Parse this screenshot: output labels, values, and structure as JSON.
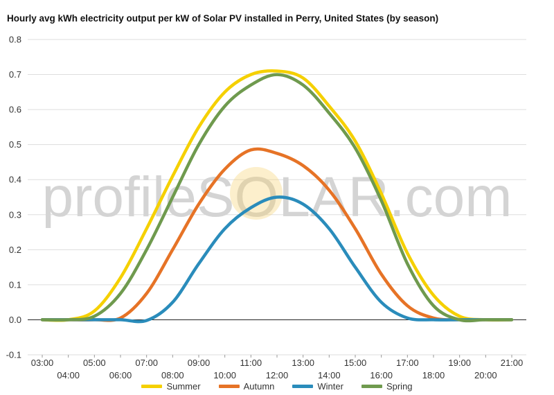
{
  "chart_data": {
    "type": "line",
    "title": "Hourly avg kWh electricity output per kW of Solar PV installed in Perry, United States (by season)",
    "xlabel": "",
    "ylabel": "",
    "ylim": [
      -0.1,
      0.8
    ],
    "yticks": [
      "0.8",
      "0.7",
      "0.6",
      "0.5",
      "0.4",
      "0.3",
      "0.2",
      "0.1",
      "0.0",
      "-0.1"
    ],
    "x": [
      3,
      4,
      5,
      6,
      7,
      8,
      9,
      10,
      11,
      12,
      13,
      14,
      15,
      16,
      17,
      18,
      19,
      20,
      21
    ],
    "x_tick_labels": [
      "03:00",
      "04:00",
      "05:00",
      "06:00",
      "07:00",
      "08:00",
      "09:00",
      "10:00",
      "11:00",
      "12:00",
      "13:00",
      "14:00",
      "15:00",
      "16:00",
      "17:00",
      "18:00",
      "19:00",
      "20:00",
      "21:00"
    ],
    "grid": true,
    "legend_position": "bottom",
    "watermark": "profileSOLAR.com",
    "series": [
      {
        "name": "Summer",
        "color": "#f5d000",
        "values": [
          0.0,
          0.0,
          0.025,
          0.12,
          0.26,
          0.41,
          0.55,
          0.65,
          0.7,
          0.71,
          0.69,
          0.61,
          0.51,
          0.36,
          0.19,
          0.07,
          0.01,
          0.0,
          0.0
        ]
      },
      {
        "name": "Autumn",
        "color": "#e67326",
        "values": [
          0.0,
          0.0,
          0.0,
          0.005,
          0.075,
          0.2,
          0.33,
          0.43,
          0.485,
          0.475,
          0.44,
          0.37,
          0.26,
          0.13,
          0.04,
          0.005,
          0.0,
          0.0,
          0.0
        ]
      },
      {
        "name": "Winter",
        "color": "#2a8cbb",
        "values": [
          0.0,
          0.0,
          0.0,
          0.0,
          -0.002,
          0.05,
          0.16,
          0.26,
          0.32,
          0.35,
          0.33,
          0.26,
          0.15,
          0.05,
          0.005,
          0.0,
          0.0,
          0.0,
          0.0
        ]
      },
      {
        "name": "Spring",
        "color": "#6f9a4e",
        "values": [
          0.0,
          0.0,
          0.01,
          0.075,
          0.2,
          0.35,
          0.5,
          0.61,
          0.67,
          0.7,
          0.67,
          0.59,
          0.49,
          0.34,
          0.16,
          0.04,
          0.0,
          0.0,
          0.0
        ]
      }
    ]
  }
}
